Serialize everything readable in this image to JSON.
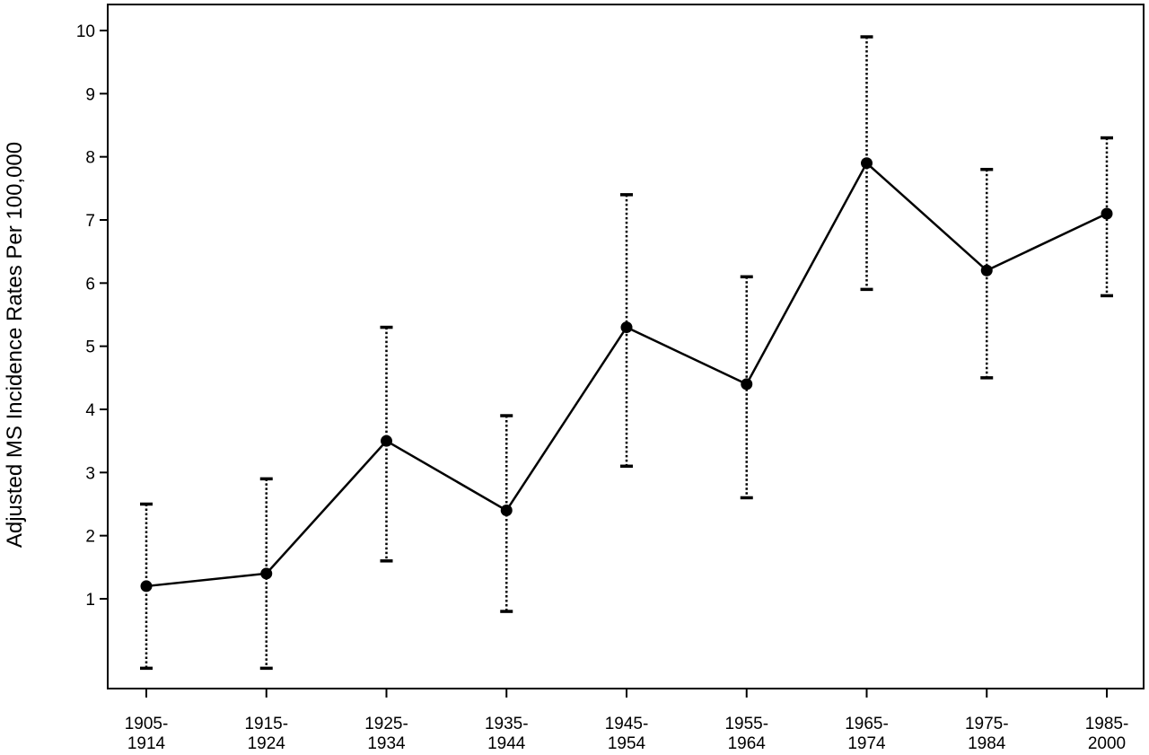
{
  "chart_data": {
    "type": "line",
    "title": "",
    "xlabel": "",
    "ylabel": "Adjusted MS Incidence Rates Per 100,000",
    "categories": [
      "1905-1914",
      "1915-1924",
      "1925-1934",
      "1935-1944",
      "1945-1954",
      "1955-1964",
      "1965-1974",
      "1975-1984",
      "1985-2000"
    ],
    "category_lines": [
      [
        "1905-",
        "1914"
      ],
      [
        "1915-",
        "1924"
      ],
      [
        "1925-",
        "1934"
      ],
      [
        "1935-",
        "1944"
      ],
      [
        "1945-",
        "1954"
      ],
      [
        "1955-",
        "1964"
      ],
      [
        "1965-",
        "1974"
      ],
      [
        "1975-",
        "1984"
      ],
      [
        "1985-",
        "2000"
      ]
    ],
    "values": [
      1.2,
      1.4,
      3.5,
      2.4,
      5.3,
      4.4,
      7.9,
      6.2,
      7.1
    ],
    "error_upper": [
      2.5,
      2.9,
      5.3,
      3.9,
      7.4,
      6.1,
      9.9,
      7.8,
      8.3
    ],
    "error_lower": [
      -0.1,
      -0.1,
      1.6,
      0.8,
      3.1,
      2.6,
      5.9,
      4.5,
      5.8
    ],
    "yticks": [
      1,
      2,
      3,
      4,
      5,
      6,
      7,
      8,
      9,
      10
    ],
    "ylim": [
      -0.4,
      10.4
    ],
    "grid": false,
    "legend": "none",
    "line_color": "#000000",
    "marker_color": "#000000"
  }
}
